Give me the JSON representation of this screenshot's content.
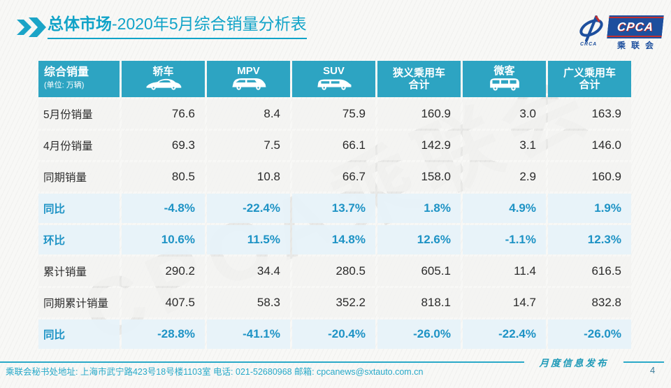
{
  "slide": {
    "title": {
      "prefix": "总体市场",
      "suffix": "-2020年5月综合销量分析表"
    },
    "watermark": "CPCA乘联会",
    "logo": {
      "acronym": "CPCA",
      "cn_name": "乘联会",
      "sub_acronym": "CRCA"
    },
    "footer": {
      "address": "乘联会秘书处地址: 上海市武宁路423号18号楼1103室 电话: 021-52680968 邮箱: cpcanews@sxtauto.com.cn",
      "release_label": "月度信息发布"
    },
    "page_number": "4",
    "colors": {
      "accent_teal": "#10a3c8",
      "header_cell": "#2da4c2",
      "highlight_row_bg": "#e7f2f9",
      "highlight_text": "#1e93c5",
      "logo_navy": "#1d4f9e",
      "logo_red": "#c03030"
    }
  },
  "chart_data": {
    "type": "table",
    "title": "总体市场-2020年5月综合销量分析表",
    "unit_note": "(单位: 万辆)",
    "corner_title": "综合销量",
    "columns": [
      {
        "lines": [
          "轿车"
        ],
        "icon": "sedan-icon"
      },
      {
        "lines": [
          "MPV"
        ],
        "icon": "mpv-icon"
      },
      {
        "lines": [
          "SUV"
        ],
        "icon": "suv-icon"
      },
      {
        "lines": [
          "狭义乘用车",
          "合计"
        ],
        "icon": null
      },
      {
        "lines": [
          "微客"
        ],
        "icon": "microvan-icon"
      },
      {
        "lines": [
          "广义乘用车",
          "合计"
        ],
        "icon": null
      }
    ],
    "rows": [
      {
        "label": "5月份销量",
        "type": "normal",
        "values": [
          "76.6",
          "8.4",
          "75.9",
          "160.9",
          "3.0",
          "163.9"
        ]
      },
      {
        "label": "4月份销量",
        "type": "normal",
        "values": [
          "69.3",
          "7.5",
          "66.1",
          "142.9",
          "3.1",
          "146.0"
        ]
      },
      {
        "label": "同期销量",
        "type": "normal",
        "values": [
          "80.5",
          "10.8",
          "66.7",
          "158.0",
          "2.9",
          "160.9"
        ]
      },
      {
        "label": "同比",
        "type": "highlight",
        "values": [
          "-4.8%",
          "-22.4%",
          "13.7%",
          "1.8%",
          "4.9%",
          "1.9%"
        ]
      },
      {
        "label": "环比",
        "type": "highlight",
        "values": [
          "10.6%",
          "11.5%",
          "14.8%",
          "12.6%",
          "-1.1%",
          "12.3%"
        ]
      },
      {
        "label": "累计销量",
        "type": "normal",
        "values": [
          "290.2",
          "34.4",
          "280.5",
          "605.1",
          "11.4",
          "616.5"
        ]
      },
      {
        "label": "同期累计销量",
        "type": "normal",
        "values": [
          "407.5",
          "58.3",
          "352.2",
          "818.1",
          "14.7",
          "832.8"
        ]
      },
      {
        "label": "同比",
        "type": "highlight",
        "values": [
          "-28.8%",
          "-41.1%",
          "-20.4%",
          "-26.0%",
          "-22.4%",
          "-26.0%"
        ]
      }
    ]
  }
}
